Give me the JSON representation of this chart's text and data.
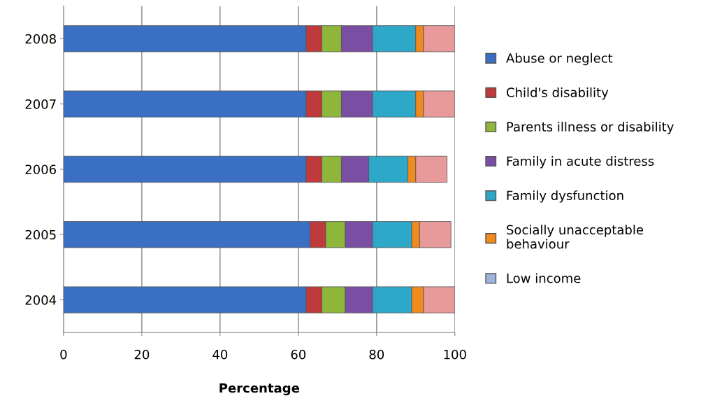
{
  "chart_data": {
    "type": "bar",
    "orientation": "horizontal",
    "stacked": true,
    "xlabel": "Percentage",
    "categories": [
      "2008",
      "2007",
      "2006",
      "2005",
      "2004"
    ],
    "series": [
      {
        "name": "Abuse or neglect",
        "color": "#3a6fc4",
        "values": [
          62,
          62,
          62,
          63,
          62
        ]
      },
      {
        "name": "Child's disability",
        "color": "#c0393b",
        "values": [
          4,
          4,
          4,
          4,
          4
        ]
      },
      {
        "name": "Parents illness or disability",
        "color": "#8db63a",
        "values": [
          5,
          5,
          5,
          5,
          6
        ]
      },
      {
        "name": "Family in acute distress",
        "color": "#7a4ea3",
        "values": [
          8,
          8,
          7,
          7,
          7
        ]
      },
      {
        "name": "Family dysfunction",
        "color": "#2ea8c8",
        "values": [
          11,
          11,
          10,
          10,
          10
        ]
      },
      {
        "name": "Socially unacceptable\nbehaviour",
        "color": "#f08a1c",
        "values": [
          2,
          2,
          2,
          2,
          3
        ]
      },
      {
        "name": "Low income",
        "color": "#9fb4dc",
        "values": [
          null,
          null,
          null,
          null,
          null
        ]
      },
      {
        "color": "#e8999a",
        "values": [
          8,
          8,
          8,
          8,
          8
        ]
      }
    ],
    "xlim": [
      0,
      100
    ],
    "xticks": [
      0,
      20,
      40,
      60,
      80,
      100
    ],
    "grid": "x",
    "legend": "right"
  }
}
